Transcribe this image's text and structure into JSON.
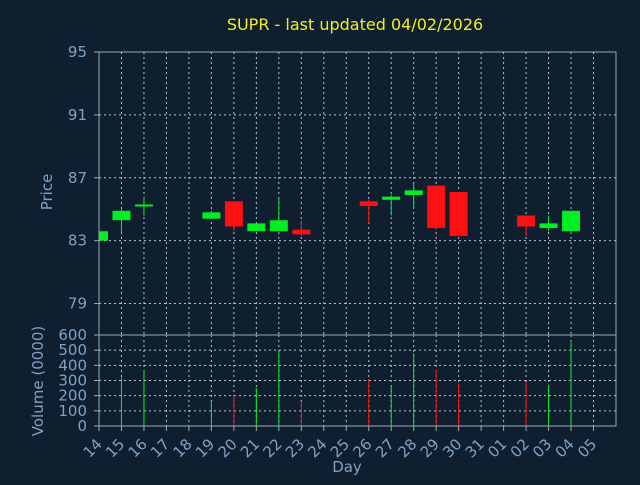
{
  "chart_data": [
    {
      "type": "candlestick",
      "title": "SUPR - last updated 04/02/2026",
      "ylabel": "Price",
      "ylim": [
        77,
        95
      ],
      "yticks": [
        "95",
        "91",
        "87",
        "83",
        "79"
      ],
      "ytick_values": [
        95,
        91,
        87,
        83,
        79
      ],
      "grid": true,
      "candles": [
        {
          "day": "14",
          "open": 83.0,
          "high": 83.7,
          "low": 83.0,
          "close": 83.6
        },
        {
          "day": "15",
          "open": 84.3,
          "high": 85.0,
          "low": 83.5,
          "close": 84.9
        },
        {
          "day": "16",
          "open": 85.2,
          "high": 85.8,
          "low": 84.6,
          "close": 85.3
        },
        {
          "day": "19",
          "open": 84.4,
          "high": 84.9,
          "low": 84.4,
          "close": 84.8
        },
        {
          "day": "20",
          "open": 85.5,
          "high": 85.5,
          "low": 83.6,
          "close": 83.9
        },
        {
          "day": "21",
          "open": 83.6,
          "high": 84.1,
          "low": 83.6,
          "close": 84.1
        },
        {
          "day": "22",
          "open": 83.6,
          "high": 85.7,
          "low": 83.6,
          "close": 84.3
        },
        {
          "day": "23",
          "open": 83.7,
          "high": 84.3,
          "low": 83.3,
          "close": 83.4
        },
        {
          "day": "26",
          "open": 85.5,
          "high": 85.6,
          "low": 84.1,
          "close": 85.2
        },
        {
          "day": "27",
          "open": 85.6,
          "high": 85.9,
          "low": 84.6,
          "close": 85.8
        },
        {
          "day": "28",
          "open": 85.9,
          "high": 86.6,
          "low": 85.1,
          "close": 86.2
        },
        {
          "day": "29",
          "open": 86.5,
          "high": 86.5,
          "low": 83.7,
          "close": 83.8
        },
        {
          "day": "30",
          "open": 86.1,
          "high": 86.1,
          "low": 83.2,
          "close": 83.3
        },
        {
          "day": "02",
          "open": 84.6,
          "high": 84.6,
          "low": 83.3,
          "close": 83.9
        },
        {
          "day": "03",
          "open": 83.8,
          "high": 84.6,
          "low": 83.6,
          "close": 84.1
        },
        {
          "day": "04",
          "open": 83.6,
          "high": 84.9,
          "low": 83.5,
          "close": 84.9
        }
      ]
    },
    {
      "type": "bar",
      "ylabel": "Volume (0000)",
      "xlabel": "Day",
      "ylim": [
        0,
        600
      ],
      "yticks": [
        "600",
        "500",
        "400",
        "300",
        "200",
        "100",
        "0"
      ],
      "ytick_values": [
        600,
        500,
        400,
        300,
        200,
        100,
        0
      ],
      "categories": [
        "14",
        "15",
        "16",
        "17",
        "18",
        "19",
        "20",
        "21",
        "22",
        "23",
        "24",
        "25",
        "26",
        "27",
        "28",
        "29",
        "30",
        "31",
        "01",
        "02",
        "03",
        "04",
        "05"
      ],
      "values": [
        0,
        320,
        370,
        0,
        0,
        160,
        210,
        250,
        500,
        160,
        0,
        0,
        310,
        260,
        480,
        370,
        280,
        0,
        0,
        290,
        270,
        550,
        0
      ],
      "direction": [
        "",
        "up",
        "up",
        "",
        "",
        "up",
        "down",
        "up",
        "up",
        "down",
        "",
        "",
        "down",
        "up",
        "up",
        "down",
        "down",
        "",
        "",
        "down",
        "up",
        "up",
        ""
      ]
    }
  ],
  "colors": {
    "background": "#0f1f30",
    "up": "#00ee22",
    "down": "#ff1010",
    "title": "#f0f020",
    "text": "#7fa2c4",
    "grid": "#b8c4d0"
  }
}
